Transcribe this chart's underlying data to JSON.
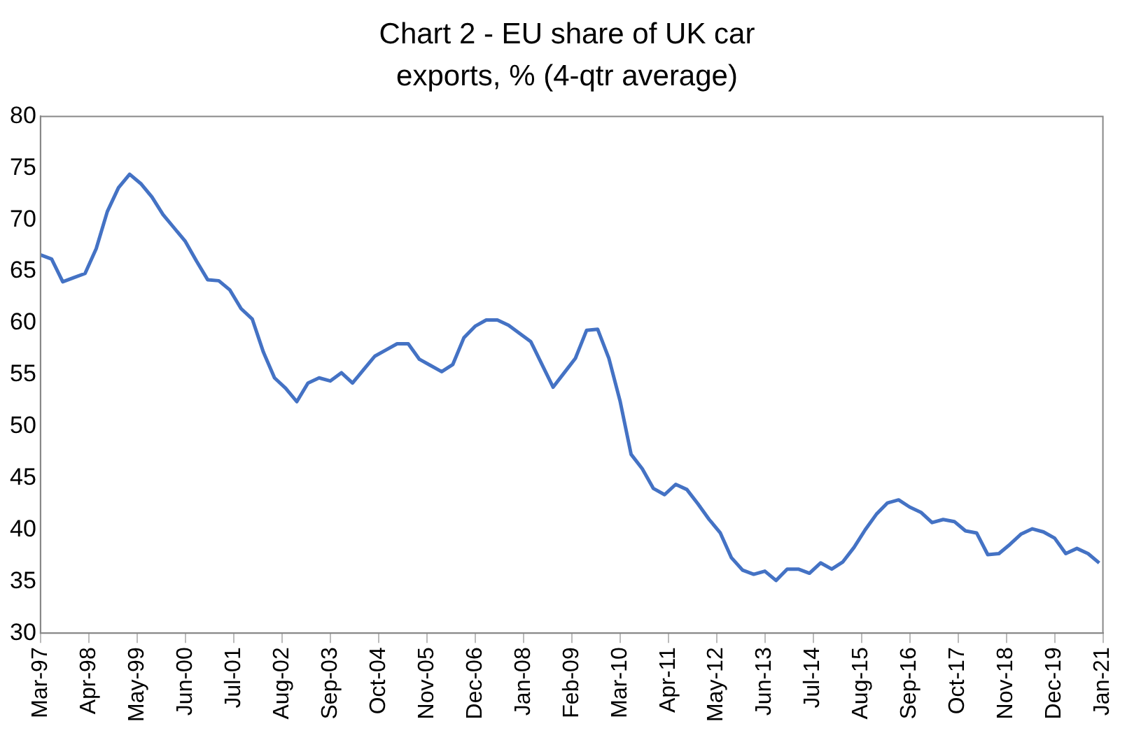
{
  "chart_data": {
    "type": "line",
    "title": "Chart 2 - EU share of UK car exports, % (4-qtr average)",
    "x": [
      "1997-03",
      "1997-06",
      "1997-09",
      "1997-12",
      "1998-03",
      "1998-06",
      "1998-09",
      "1998-12",
      "1999-03",
      "1999-06",
      "1999-09",
      "1999-12",
      "2000-03",
      "2000-06",
      "2000-09",
      "2000-12",
      "2001-03",
      "2001-06",
      "2001-09",
      "2001-12",
      "2002-03",
      "2002-06",
      "2002-09",
      "2002-12",
      "2003-03",
      "2003-06",
      "2003-09",
      "2003-12",
      "2004-03",
      "2004-06",
      "2004-09",
      "2004-12",
      "2005-03",
      "2005-06",
      "2005-09",
      "2005-12",
      "2006-03",
      "2006-06",
      "2006-09",
      "2006-12",
      "2007-03",
      "2007-06",
      "2007-09",
      "2007-12",
      "2008-03",
      "2008-06",
      "2008-09",
      "2008-12",
      "2009-03",
      "2009-06",
      "2009-09",
      "2009-12",
      "2010-03",
      "2010-06",
      "2010-09",
      "2010-12",
      "2011-03",
      "2011-06",
      "2011-09",
      "2011-12",
      "2012-03",
      "2012-06",
      "2012-09",
      "2012-12",
      "2013-03",
      "2013-06",
      "2013-09",
      "2013-12",
      "2014-03",
      "2014-06",
      "2014-09",
      "2014-12",
      "2015-03",
      "2015-06",
      "2015-09",
      "2015-12",
      "2016-03",
      "2016-06",
      "2016-09",
      "2016-12",
      "2017-03",
      "2017-06",
      "2017-09",
      "2017-12",
      "2018-03",
      "2018-06",
      "2018-09",
      "2018-12",
      "2019-03",
      "2019-06",
      "2019-09",
      "2019-12",
      "2020-03",
      "2020-06",
      "2020-09",
      "2020-12"
    ],
    "series": [
      {
        "color": "#4472c4",
        "values": [
          66.6,
          66.2,
          64.0,
          64.4,
          64.8,
          67.2,
          70.8,
          73.1,
          74.4,
          73.5,
          72.2,
          70.5,
          69.2,
          67.9,
          66.0,
          64.2,
          64.1,
          63.2,
          61.4,
          60.4,
          57.2,
          54.7,
          53.7,
          52.4,
          54.2,
          54.7,
          54.4,
          55.2,
          54.2,
          55.5,
          56.8,
          57.4,
          58.0,
          58.0,
          56.5,
          55.9,
          55.3,
          56.0,
          58.6,
          59.7,
          60.3,
          60.3,
          59.8,
          59.0,
          58.2,
          56.0,
          53.8,
          55.2,
          56.6,
          59.3,
          59.4,
          56.6,
          52.5,
          47.3,
          45.9,
          44.0,
          43.4,
          44.4,
          43.9,
          42.5,
          41.0,
          39.7,
          37.3,
          36.1,
          35.7,
          36.0,
          35.1,
          36.2,
          36.2,
          35.8,
          36.8,
          36.2,
          36.9,
          38.3,
          40.0,
          41.5,
          42.6,
          42.9,
          42.2,
          41.7,
          40.7,
          41.0,
          40.8,
          39.9,
          39.7,
          37.6,
          37.7,
          38.6,
          39.6,
          40.1,
          39.8,
          39.2,
          37.7,
          38.2,
          37.7,
          36.8
        ]
      }
    ],
    "xlim": [
      "1997-03",
      "2021-01"
    ],
    "xticks": [
      {
        "value": "1997-03",
        "label": "Mar-97"
      },
      {
        "value": "1998-04",
        "label": "Apr-98"
      },
      {
        "value": "1999-05",
        "label": "May-99"
      },
      {
        "value": "2000-06",
        "label": "Jun-00"
      },
      {
        "value": "2001-07",
        "label": "Jul-01"
      },
      {
        "value": "2002-08",
        "label": "Aug-02"
      },
      {
        "value": "2003-09",
        "label": "Sep-03"
      },
      {
        "value": "2004-10",
        "label": "Oct-04"
      },
      {
        "value": "2005-11",
        "label": "Nov-05"
      },
      {
        "value": "2006-12",
        "label": "Dec-06"
      },
      {
        "value": "2008-01",
        "label": "Jan-08"
      },
      {
        "value": "2009-02",
        "label": "Feb-09"
      },
      {
        "value": "2010-03",
        "label": "Mar-10"
      },
      {
        "value": "2011-04",
        "label": "Apr-11"
      },
      {
        "value": "2012-05",
        "label": "May-12"
      },
      {
        "value": "2013-06",
        "label": "Jun-13"
      },
      {
        "value": "2014-07",
        "label": "Jul-14"
      },
      {
        "value": "2015-08",
        "label": "Aug-15"
      },
      {
        "value": "2016-09",
        "label": "Sep-16"
      },
      {
        "value": "2017-10",
        "label": "Oct-17"
      },
      {
        "value": "2018-11",
        "label": "Nov-18"
      },
      {
        "value": "2019-12",
        "label": "Dec-19"
      },
      {
        "value": "2021-01",
        "label": "Jan-21"
      }
    ],
    "ylim": [
      30,
      80
    ],
    "yticks": [
      30,
      35,
      40,
      45,
      50,
      55,
      60,
      65,
      70,
      75,
      80
    ],
    "grid": false,
    "legend": false,
    "marker": "none",
    "line_style": "solid"
  }
}
